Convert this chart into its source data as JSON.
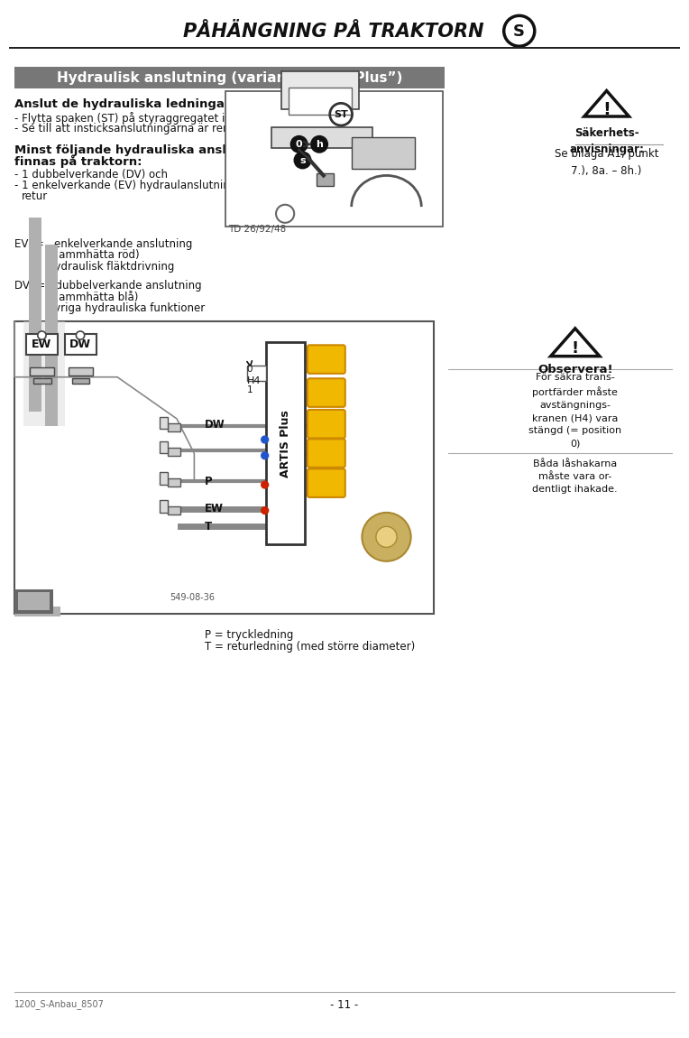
{
  "page_title": "PÅHÄNGNING PÅ TRAKTORN",
  "page_title_s": "S",
  "page_number": "- 11 -",
  "footer_left": "1200_S-Anbau_8507",
  "section_header": "Hydraulisk anslutning (variant “ARTIS Plus”)",
  "col1_title": "Anslut de hydrauliska ledningarna till traktorn",
  "col1_b1": "Flytta spaken (ST) på styraggregatet i flytsställning (0).",
  "col1_b2": "Se till att insticksanslutningarna är rena!!",
  "col1_bold1": "Minst följande hydrauliska anslutningar måste",
  "col1_bold2": "finnas på traktorn:",
  "col1_list1": "1 dubbelverkande (DV) och",
  "col1_list2a": "1 enkelverkande (EV) hydraulanslutning med tryckfri",
  "col1_list2b": "retur",
  "img_label": "TD 26/92/48",
  "right_warn_title": "Säkerhets-\nanvisningar:",
  "right_warn_body": "Se bilaga A1, punkt\n7.), 8a. – 8h.)",
  "ev_line1": "EV  =   enkelverkande anslutning",
  "ev_line2": "(dammhätta röd)",
  "ev_line3": "hydraulisk fläktdrivning",
  "dv_line1": "DV  =   dubbelverkande anslutning",
  "dv_line2": "(dammhätta blå)",
  "dv_line3": "övriga hydrauliska funktioner",
  "diagram_label": "549-08-36",
  "ew_label": "EW",
  "dw_label": "DW",
  "artis_plus_label": "ARTIS Plus",
  "h4_label": "H4",
  "dw_label2": "DW",
  "p_label": "P",
  "ew_label2": "EW",
  "t_label": "T",
  "observera_title": "Observera!",
  "observera_body1": "För säkra trans-\nportfärder måste\navstängnings-\nkranen (H4) vara\nstängd (= position\n0)",
  "observera_body2": "Båda låshakarna\nmåste vara or-\ndentligt ihakade.",
  "p_desc": "P = tryckledning",
  "t_desc": "T = returledning (med större diameter)",
  "bg_color": "#ffffff",
  "gray_header": "#777777",
  "dark": "#111111",
  "mid_gray": "#888888",
  "light_gray": "#cccccc",
  "diagram_bg": "#f0f0f0",
  "yellow": "#f0b800",
  "blue_dot": "#2255cc",
  "red_dot": "#cc2200",
  "tan_color": "#c8b060"
}
